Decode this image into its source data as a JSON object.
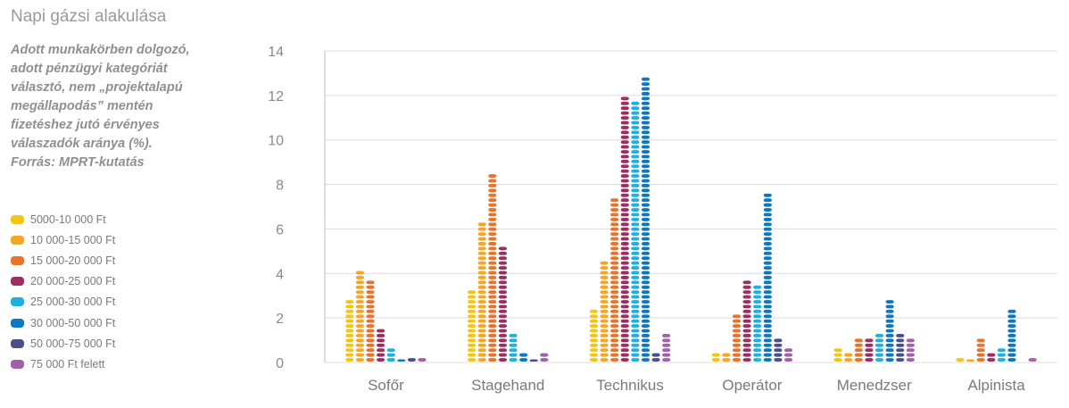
{
  "title": "Napi gázsi alakulása",
  "subtitle": "Adott munkakörben dolgozó,\nadott pénzügyi kategóriát\nválasztó, nem „projektalapú\nmegállapodás” mentén\nfizetéshez jutó érvényes\nválaszadók aránya (%).\nForrás: MPRT-kutatás",
  "chart_data": {
    "type": "bar",
    "categories": [
      "Sofőr",
      "Stagehand",
      "Technikus",
      "Operátor",
      "Menedzser",
      "Alpinista"
    ],
    "ylim": [
      0,
      14
    ],
    "yticks": [
      "0",
      "2",
      "4",
      "6",
      "8",
      "10",
      "12",
      "14"
    ],
    "legend_position": "left",
    "series": [
      {
        "name": "5000-10 000 Ft",
        "color": "#f3c614",
        "values": [
          3.0,
          3.3,
          2.4,
          0.5,
          0.8,
          0.25
        ]
      },
      {
        "name": "10 000-15 000 Ft",
        "color": "#f5a623",
        "values": [
          4.1,
          6.3,
          4.6,
          0.5,
          0.5,
          0.1
        ]
      },
      {
        "name": "15 000-20 000 Ft",
        "color": "#e8732d",
        "values": [
          3.8,
          8.5,
          7.4,
          2.2,
          1.1,
          1.1
        ]
      },
      {
        "name": "20 000-25 000 Ft",
        "color": "#9b2f61",
        "values": [
          1.6,
          5.2,
          12.0,
          3.8,
          1.1,
          0.5
        ]
      },
      {
        "name": "25 000-30 000 Ft",
        "color": "#1fb0e0",
        "values": [
          0.8,
          1.3,
          11.9,
          3.6,
          1.3,
          0.8
        ]
      },
      {
        "name": "30 000-50 000 Ft",
        "color": "#0e78bf",
        "values": [
          0.1,
          0.5,
          12.8,
          7.6,
          3.0,
          2.4
        ]
      },
      {
        "name": "50 000-75 000 Ft",
        "color": "#4a4f8c",
        "values": [
          0.2,
          0.1,
          0.5,
          1.1,
          1.3,
          0.0
        ]
      },
      {
        "name": "75 000 Ft felett",
        "color": "#a160a8",
        "values": [
          0.2,
          0.5,
          1.3,
          0.8,
          1.1,
          0.2
        ]
      }
    ]
  }
}
